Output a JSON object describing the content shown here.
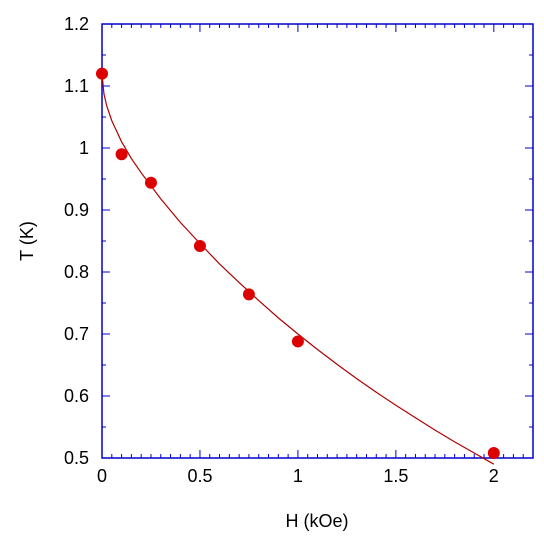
{
  "chart_data": {
    "type": "scatter",
    "xlabel": "H (kOe)",
    "ylabel": "T (K)",
    "xlim": [
      0,
      2.2
    ],
    "ylim": [
      0.5,
      1.2
    ],
    "x_ticks": [
      0,
      0.5,
      1,
      1.5,
      2
    ],
    "y_ticks": [
      0.5,
      0.6,
      0.7,
      0.8,
      0.9,
      1,
      1.1,
      1.2
    ],
    "x_tick_labels": [
      "0",
      "0.5",
      "1",
      "1.5",
      "2"
    ],
    "y_tick_labels": [
      "0.5",
      "0.6",
      "0.7",
      "0.8",
      "0.9",
      "1",
      "1.1",
      "1.2"
    ],
    "grid": false,
    "series": [
      {
        "type": "scatter",
        "x": [
          0,
          0.1,
          0.25,
          0.5,
          0.75,
          1.0,
          2.0
        ],
        "y": [
          1.12,
          0.99,
          0.944,
          0.842,
          0.764,
          0.688,
          0.508
        ],
        "color": "#dd0000"
      },
      {
        "type": "line",
        "x": [
          0,
          0.01,
          0.025,
          0.05,
          0.1,
          0.15,
          0.2,
          0.3,
          0.4,
          0.5,
          0.6,
          0.7,
          0.8,
          0.9,
          1.0,
          1.1,
          1.2,
          1.3,
          1.4,
          1.5,
          1.6,
          1.7,
          1.8,
          1.9,
          2.0
        ],
        "y": [
          1.12,
          1.087,
          1.067,
          1.044,
          1.01,
          0.983,
          0.96,
          0.918,
          0.88,
          0.846,
          0.813,
          0.783,
          0.754,
          0.726,
          0.7,
          0.675,
          0.651,
          0.628,
          0.606,
          0.585,
          0.565,
          0.545,
          0.526,
          0.508,
          0.49
        ],
        "color": "#b00000"
      }
    ]
  }
}
